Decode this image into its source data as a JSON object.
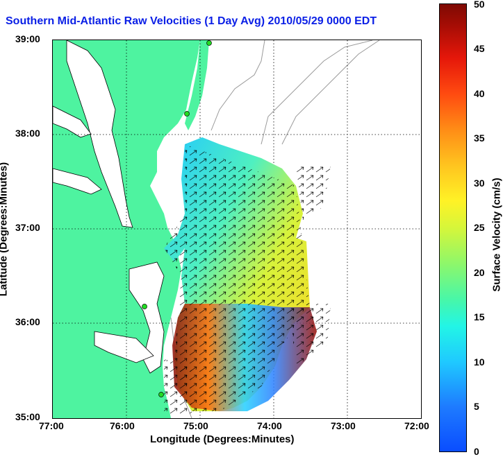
{
  "title": "Southern Mid-Atlantic Raw Velocities (1 Day Avg) 2010/05/29 0000 EDT",
  "xlabel": "Longitude (Degrees:Minutes)",
  "ylabel": "Latitude (Degrees:Minutes)",
  "x_ticks": [
    "77:00",
    "76:00",
    "75:00",
    "74:00",
    "73:00",
    "72:00"
  ],
  "y_ticks": [
    "39:00",
    "38:00",
    "37:00",
    "36:00",
    "35:00"
  ],
  "colorbar": {
    "title": "Surface Velocity (cm/s)",
    "ticks": [
      "50",
      "45",
      "40",
      "35",
      "30",
      "25",
      "20",
      "15",
      "10",
      "5",
      "0"
    ],
    "min": 0,
    "max": 50
  },
  "colors": {
    "title": "#0a1fe6",
    "land": "#4ef3a0",
    "coast": "#000000",
    "bathymetry": "#9a9a9a",
    "station": "#22dd22"
  }
}
